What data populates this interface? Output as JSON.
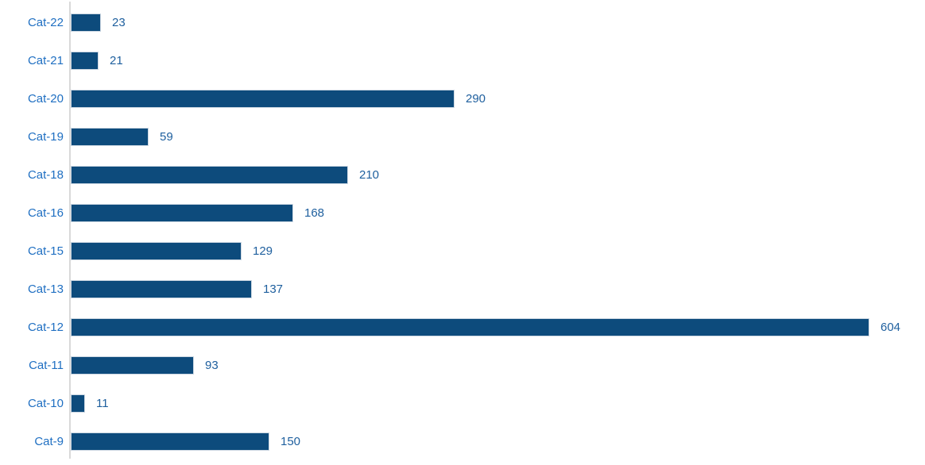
{
  "chart_data": {
    "type": "bar",
    "orientation": "horizontal",
    "title": "",
    "xlabel": "",
    "ylabel": "",
    "categories": [
      "Cat-22",
      "Cat-21",
      "Cat-20",
      "Cat-19",
      "Cat-18",
      "Cat-16",
      "Cat-15",
      "Cat-13",
      "Cat-12",
      "Cat-11",
      "Cat-10",
      "Cat-9"
    ],
    "values": [
      23,
      21,
      290,
      59,
      210,
      168,
      129,
      137,
      604,
      93,
      11,
      150
    ],
    "value_labels_shown": true,
    "grid": false,
    "legend": false,
    "xlim": [
      0,
      650
    ],
    "colors": {
      "bar_fill": "#0d4b7c",
      "bar_border": "#ccd7e2",
      "category_label": "#1f6fc2",
      "value_label": "#1e5f9e",
      "axis_line": "#d9d9d9",
      "background": "#ffffff"
    }
  }
}
